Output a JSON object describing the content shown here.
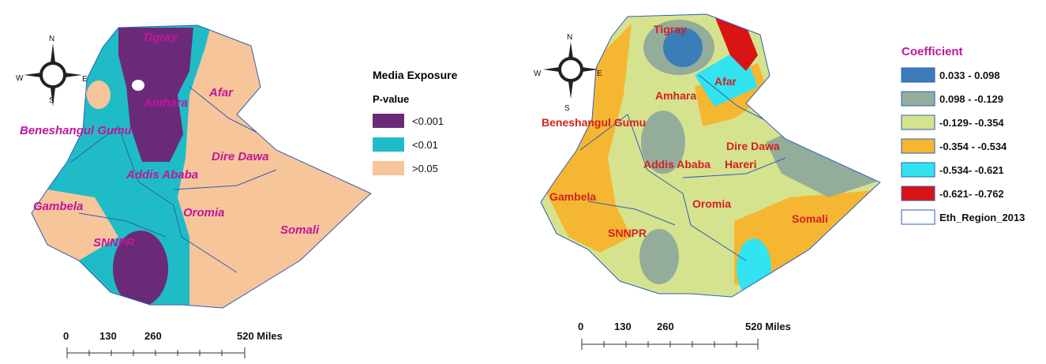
{
  "left_map": {
    "compass": {
      "n": "N",
      "e": "E",
      "s": "S",
      "w": "W"
    },
    "regions": [
      "Tigray",
      "Afar",
      "Amhara",
      "Beneshangul Gumu",
      "Dire Dawa",
      "Addis Ababa",
      "Gambela",
      "Oromia",
      "Somali",
      "SNNPR"
    ],
    "legend": {
      "title": "Media Exposure",
      "subtitle": "P-value",
      "items": [
        {
          "label": "<0.001",
          "color": "#6b2a78"
        },
        {
          "label": "<0.01",
          "color": "#1fbcc8"
        },
        {
          "label": ">0.05",
          "color": "#f7c59a"
        }
      ]
    },
    "scale": [
      "0",
      "130",
      "260",
      "520 Miles"
    ]
  },
  "right_map": {
    "compass": {
      "n": "N",
      "e": "E",
      "s": "S",
      "w": "W"
    },
    "regions": [
      "Tigray",
      "Afar",
      "Amhara",
      "Beneshangul Gumu",
      "Dire Dawa",
      "Addis Ababa",
      "Hareri",
      "Gambela",
      "Oromia",
      "Somali",
      "SNNPR"
    ],
    "legend": {
      "title": "Coefficient",
      "items": [
        {
          "label": "0.033 - 0.098",
          "color": "#3a7db8"
        },
        {
          "label": "0.098 - -0.129",
          "color": "#93ad9a"
        },
        {
          "label": "-0.129- -0.354",
          "color": "#d6e38e"
        },
        {
          "label": "-0.354 - -0.534",
          "color": "#f5b731"
        },
        {
          "label": "-0.534- -0.621",
          "color": "#33e3ef"
        },
        {
          "label": "-0.621- -0.762",
          "color": "#d81414"
        },
        {
          "label": "Eth_Region_2013",
          "color": "#ffffff"
        }
      ]
    },
    "scale": [
      "0",
      "130",
      "260",
      "520 Miles"
    ]
  }
}
